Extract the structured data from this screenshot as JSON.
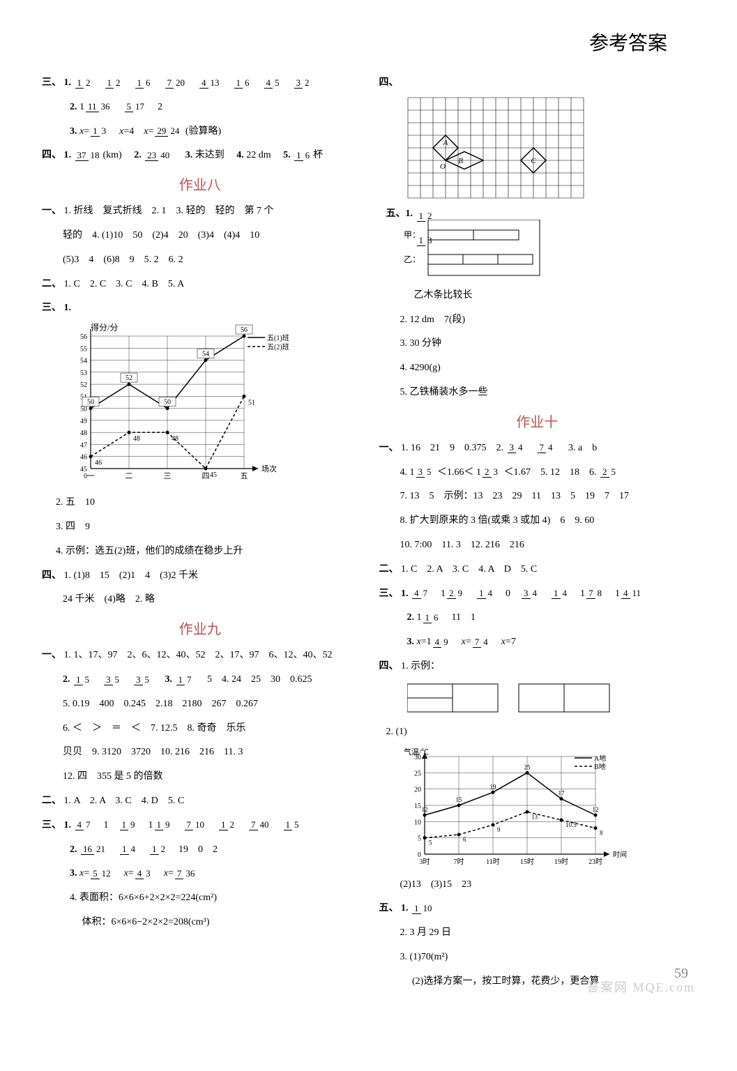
{
  "header": "参考答案",
  "pagenum": "59",
  "watermark": "答案网  MQE.com",
  "left": {
    "part3_label": "三、",
    "p3_1": {
      "n": "1.",
      "vals": [
        "1/2",
        "1/2",
        "1/6",
        "7/20",
        "4/13",
        "1/6",
        "4/5",
        "3/2"
      ]
    },
    "p3_2": {
      "n": "2.",
      "vals": [
        "1 11/36",
        "5/17",
        "2"
      ]
    },
    "p3_3": {
      "n": "3.",
      "eq1": "x=1/3",
      "eq2": "x=4",
      "eq3": "x=29/24",
      "note": "(验算略)"
    },
    "part4_label": "四、",
    "p4_1": {
      "n": "1.",
      "v": "37/18",
      "u": "(km)"
    },
    "p4_2": {
      "n": "2.",
      "v": "23/40"
    },
    "p4_3": {
      "n": "3.",
      "t": "未达到"
    },
    "p4_4": {
      "n": "4.",
      "t": "22 dm"
    },
    "p4_5": {
      "n": "5.",
      "v": "1/6",
      "u": "杯"
    },
    "hw8_title": "作业八",
    "hw8_1_label": "一、",
    "hw8_1": [
      "1. 折线　复式折线　2. 1　3. 轻的　轻的　第 7 个",
      "轻的　4. (1)10　50　(2)4　20　(3)4　(4)4　10",
      "(5)3　4　(6)8　9　5. 2　6. 2"
    ],
    "hw8_2_label": "二、",
    "hw8_2": "1. C　2. C　3. C　4. B　5. A",
    "hw8_3_label": "三、",
    "chart1": {
      "title": "1.",
      "ylabel": "得分/分",
      "xlabel": "场次",
      "legend": [
        "五(1)班",
        "五(2)班"
      ],
      "x": [
        "一",
        "二",
        "三",
        "四",
        "五"
      ],
      "ymin": 45,
      "ymax": 56,
      "ystep": 1,
      "s1": [
        50,
        52,
        50,
        54,
        56
      ],
      "s2": [
        46,
        48,
        48,
        45,
        51
      ],
      "pt_labels1": [
        "50",
        "52",
        "50",
        "54",
        "56"
      ],
      "pt_labels2": [
        "46",
        "48",
        "48",
        "45",
        "51"
      ],
      "line1_style": "solid",
      "line2_style": "dash",
      "bg": "#ffffff",
      "grid": "#000000"
    },
    "hw8_3_2": "2. 五　10",
    "hw8_3_3": "3. 四　9",
    "hw8_3_4": "4. 示例：选五(2)班，他们的成绩在稳步上升",
    "hw8_4_label": "四、",
    "hw8_4": [
      "1. (1)8　15　(2)1　4　(3)2 千米",
      "24 千米　(4)略　2. 略"
    ],
    "hw9_title": "作业九",
    "hw9_1_label": "一、",
    "hw9_1_1": "1. 1、17、97　2、6、12、40、52　2、17、97　6、12、40、52",
    "hw9_1_2": {
      "n": "2.",
      "fracs": [
        "1/5",
        "3/5",
        "3/5"
      ],
      "n3": "3.",
      "f3": "1/7",
      "rest": "5　4. 24　25　30　0.625"
    },
    "hw9_1_5": "5. 0.19　400　0.245　2.18　2180　267　0.267",
    "hw9_1_6": "6. ＜　＞　＝　＜　7. 12.5　8. 奇奇　乐乐",
    "hw9_1_6b": "贝贝　9. 3120　3720　10. 216　216　11. 3",
    "hw9_1_12": "12. 四　355 是 5 的倍数",
    "hw9_2_label": "二、",
    "hw9_2": "1. A　2. A　3. C　4. D　5. C",
    "hw9_3_label": "三、",
    "hw9_3_1": {
      "n": "1.",
      "vals": [
        "4/7",
        "1",
        "1/9",
        "1 1/9",
        "7/10",
        "1/2",
        "7/40",
        "1/5"
      ]
    },
    "hw9_3_2": {
      "n": "2.",
      "vals": [
        "16/21",
        "1/4",
        "1/2",
        "19",
        "0",
        "2"
      ]
    },
    "hw9_3_3": {
      "n": "3.",
      "eqs": [
        "x=5/12",
        "x=4/3",
        "x=7/36"
      ]
    },
    "hw9_3_4a": "4. 表面积：6×6×6+2×2×2=224(cm²)",
    "hw9_3_4b": "　 体积：6×6×6−2×2×2=208(cm³)"
  },
  "right": {
    "part4_label": "四、",
    "grid_diagram": {
      "cols": 14,
      "rows": 8,
      "cell": 18,
      "labels": {
        "A": "A",
        "B": "B",
        "C": "C",
        "O": "O"
      }
    },
    "part5_label": "五、",
    "bars": {
      "labels": {
        "jia": "甲：",
        "yi": "乙："
      },
      "fracs": {
        "jia": "1/2",
        "yi": "1/3"
      },
      "note": "乙木条比较长"
    },
    "p5_2": "2. 12 dm　7(段)",
    "p5_3": "3. 30 分钟",
    "p5_4": "4. 4290(g)",
    "p5_5": "5. 乙铁桶装水多一些",
    "hw10_title": "作业十",
    "hw10_1_label": "一、",
    "hw10_1_1": {
      "pre": "1. 16　21　9　0.375　2.",
      "fracs": [
        "3/4",
        "7/4"
      ],
      "post": "　3. a　b"
    },
    "hw10_1_4": {
      "pre": "4. ",
      "a": "1 3/5",
      "lt1": "＜1.66＜",
      "b": "1 2/3",
      "lt2": "＜1.67　5. 12　18　6.",
      "c": "2/5"
    },
    "hw10_1_7": "7. 13　5　示例：13　23　29　11　13　5　19　7　17",
    "hw10_1_8": "8. 扩大到原来的 3 倍(或乘 3 或加 4)　6　9. 60",
    "hw10_1_10": "10. 7:00　11. 3　12. 216　216",
    "hw10_2_label": "二、",
    "hw10_2": "1. C　2. A　3. C　4. A　D　5. C",
    "hw10_3_label": "三、",
    "hw10_3_1": {
      "n": "1.",
      "vals": [
        "4/7",
        "1 2/9",
        "1/4",
        "0",
        "3/4",
        "1/4",
        "1 7/8",
        "1 4/11"
      ]
    },
    "hw10_3_2": {
      "n": "2.",
      "vals": [
        "1 1/6",
        "11",
        "1"
      ]
    },
    "hw10_3_3": {
      "n": "3.",
      "eqs": [
        "x=1 4/9",
        "x=7/4",
        "x=7"
      ]
    },
    "hw10_4_label": "四、",
    "hw10_4_1": "1. 示例：",
    "hw10_4_2": "2. (1)",
    "chart2": {
      "ylabel": "气温/℃",
      "xlabel": "时间",
      "legend": [
        "A地",
        "B地"
      ],
      "x": [
        "3时",
        "7时",
        "11时",
        "15时",
        "19时",
        "23时"
      ],
      "ymin": 0,
      "ymax": 30,
      "ystep": 5,
      "s1": [
        12,
        15,
        19,
        25,
        17,
        12
      ],
      "s2": [
        5,
        6,
        9,
        13,
        10.5,
        8
      ],
      "pt_labels1": [
        "12",
        "15",
        "19",
        "25",
        "17",
        "12"
      ],
      "pt_labels2": [
        "5",
        "6",
        "9",
        "13",
        "10.5",
        "8"
      ]
    },
    "hw10_4_2b": "(2)13　(3)15　23",
    "hw10_5_label": "五、",
    "hw10_5_1": {
      "n": "1.",
      "v": "1/10"
    },
    "hw10_5_2": "2. 3 月 29 日",
    "hw10_5_3": "3. (1)70(m²)",
    "hw10_5_3b": "　 (2)选择方案一，按工时算，花费少，更合算"
  }
}
